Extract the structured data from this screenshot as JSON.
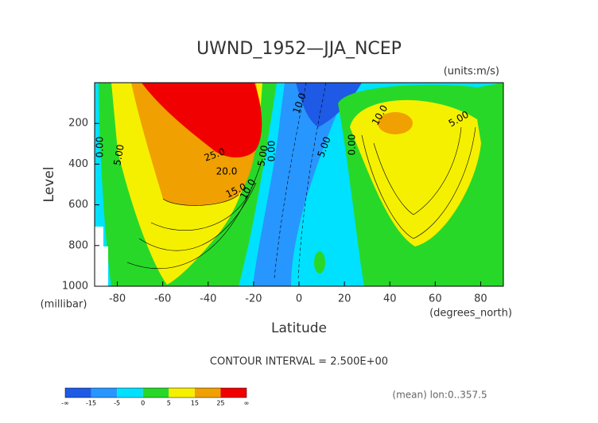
{
  "chart_data": {
    "type": "contour",
    "title": "UWND_1952—JJA_NCEP",
    "units": "(units:m/s)",
    "y_label": "Level",
    "y_unit": "(millibar)",
    "x_label": "Latitude",
    "x_unit": "(degrees_north)",
    "xlim": [
      -90,
      90
    ],
    "xticks": [
      -80,
      -60,
      -40,
      -20,
      0,
      20,
      40,
      60,
      80
    ],
    "ylim": [
      1000,
      0
    ],
    "yticks": [
      200,
      400,
      600,
      800,
      1000
    ],
    "contour_labels": [
      "10.0",
      "5.00",
      "0.00",
      "0.00",
      "5.00",
      "25.0",
      "20.0",
      "15.0",
      "10.0",
      "5.00",
      "0.00",
      "10.0",
      "5.00"
    ],
    "note": "CONTOUR INTERVAL = 2.500E+00",
    "mean_note": "(mean) lon:0..357.5",
    "colorbar": {
      "ticks": [
        "-∞",
        -15,
        -5,
        0,
        5,
        15,
        25,
        "∞"
      ],
      "colors": [
        "#1e5ae6",
        "#2896ff",
        "#00e1ff",
        "#28d828",
        "#f5f000",
        "#f0a000",
        "#f00000"
      ]
    }
  }
}
